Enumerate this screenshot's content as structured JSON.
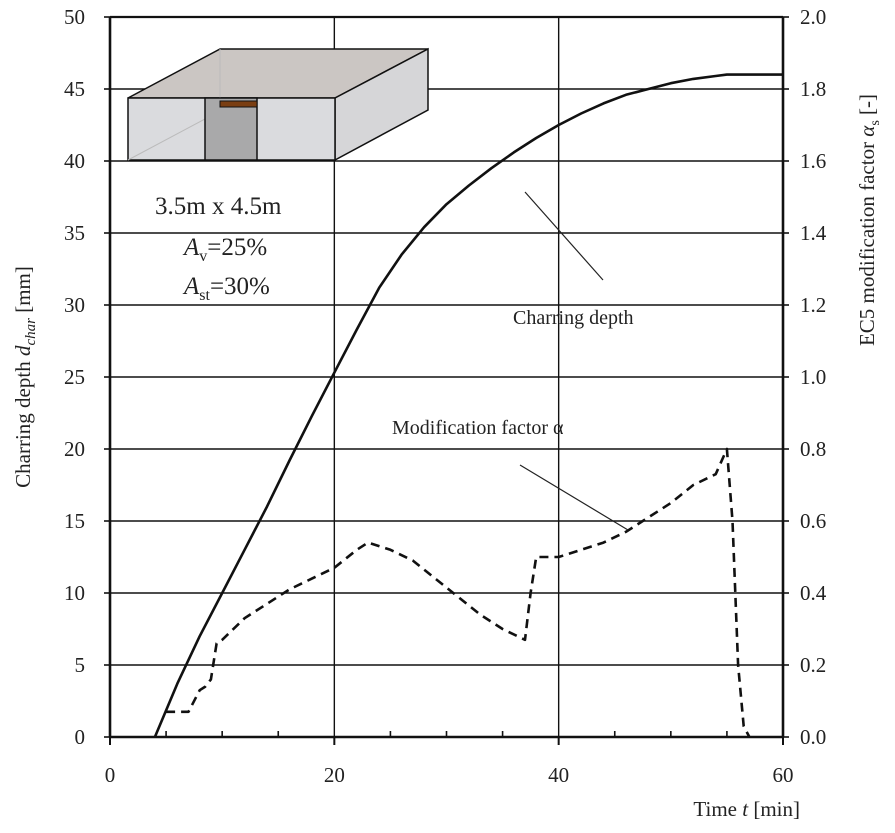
{
  "chart_data": {
    "type": "line",
    "title": "",
    "xlabel": "Time  t [min]",
    "ylabel": "Charring depth d_char [mm]",
    "y2label": "EC5 modification factor α_s [-]",
    "xlim": [
      0,
      60
    ],
    "ylim": [
      0,
      50
    ],
    "y2lim": [
      0.0,
      2.0
    ],
    "xticks": [
      "0",
      "20",
      "40",
      "60"
    ],
    "yticks": [
      "0",
      "5",
      "10",
      "15",
      "20",
      "25",
      "30",
      "35",
      "40",
      "45",
      "50"
    ],
    "y2ticks": [
      "0.0",
      "0.2",
      "0.4",
      "0.6",
      "0.8",
      "1.0",
      "1.2",
      "1.4",
      "1.6",
      "1.8",
      "2.0"
    ],
    "grid": true,
    "legend_position": "none (leader-line annotations)",
    "series": [
      {
        "name": "Charring depth",
        "axis": "left",
        "style": "solid",
        "x": [
          4,
          6,
          8,
          10,
          12,
          14,
          16,
          18,
          20,
          22,
          24,
          26,
          28,
          30,
          32,
          34,
          36,
          38,
          40,
          42,
          44,
          46,
          48,
          50,
          52,
          54,
          55,
          60
        ],
        "y": [
          0,
          3.7,
          7.0,
          10.0,
          13.0,
          16.0,
          19.2,
          22.3,
          25.3,
          28.3,
          31.2,
          33.5,
          35.4,
          37.0,
          38.3,
          39.5,
          40.6,
          41.6,
          42.5,
          43.3,
          44.0,
          44.6,
          45.0,
          45.4,
          45.7,
          45.9,
          46.0,
          46.0
        ]
      },
      {
        "name": "Modification factor α",
        "axis": "right",
        "style": "dashed",
        "x": [
          5,
          7,
          8,
          8.5,
          9,
          9.5,
          10,
          12,
          14,
          16,
          18,
          20,
          22,
          23,
          25,
          27,
          29,
          31,
          33,
          35,
          37,
          37.5,
          38,
          39,
          40,
          42,
          44,
          46,
          48,
          50,
          52,
          54,
          55,
          55.5,
          56,
          56.5,
          57
        ],
        "y": [
          0.07,
          0.07,
          0.13,
          0.14,
          0.16,
          0.26,
          0.27,
          0.33,
          0.37,
          0.41,
          0.44,
          0.47,
          0.52,
          0.54,
          0.52,
          0.49,
          0.44,
          0.39,
          0.34,
          0.3,
          0.27,
          0.4,
          0.5,
          0.5,
          0.5,
          0.52,
          0.54,
          0.57,
          0.61,
          0.65,
          0.7,
          0.73,
          0.8,
          0.6,
          0.2,
          0.03,
          0.0
        ]
      }
    ],
    "annotations": [
      {
        "text": "3.5m x 4.5m",
        "kind": "room-dimensions"
      },
      {
        "text": "A_v=25%",
        "kind": "ventilation-opening-ratio"
      },
      {
        "text": "A_st=30%",
        "kind": "exposed-timber-ratio"
      },
      {
        "text": "Charring depth",
        "kind": "series-label"
      },
      {
        "text": "Modification factor α",
        "kind": "series-label"
      }
    ]
  },
  "labels": {
    "xlabel_prefix": "Time  ",
    "xlabel_var": "t",
    "xlabel_unit": " [min]",
    "ylabel_prefix": "Charring depth ",
    "ylabel_var": "d",
    "ylabel_sub": "char",
    "ylabel_unit": " [mm]",
    "y2label_prefix": "EC5 modification factor ",
    "y2label_var": "α",
    "y2label_sub": "s",
    "y2label_unit": " [-]",
    "room": "3.5m x 4.5m",
    "av_var": "A",
    "av_sub": "v",
    "av_val": "=25%",
    "ast_var": "A",
    "ast_sub": "st",
    "ast_val": "=30%",
    "char_series_label": "Charring depth",
    "mod_series_label": "Modification factor α"
  },
  "colors": {
    "line": "#111111",
    "grid": "#111111",
    "box_front": "#dadbde",
    "box_top": "#cbc6c3",
    "box_side": "#d6d6d8",
    "box_door": "#a9a9aa",
    "box_opening": "#7a3e12"
  }
}
